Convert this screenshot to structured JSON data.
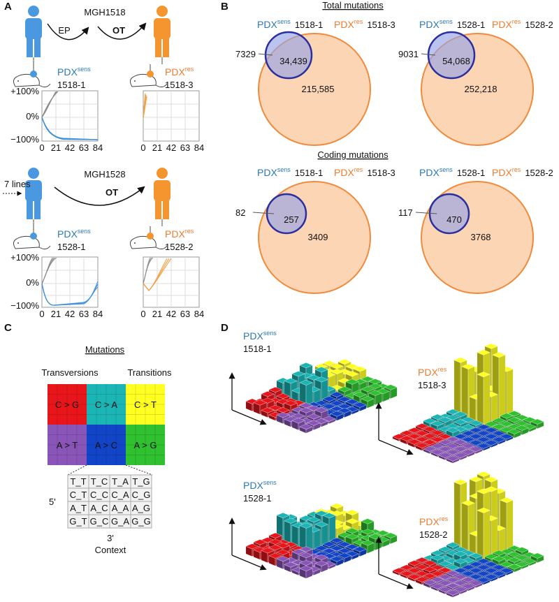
{
  "panel_a": {
    "label": "A",
    "cases": [
      {
        "patient": "MGH1518",
        "steps": [
          "EP",
          "OT"
        ],
        "models": [
          {
            "prefix": "PDX",
            "sup": "sens",
            "id": "1518-1"
          },
          {
            "prefix": "PDX",
            "sup": "res",
            "id": "1518-3"
          }
        ]
      },
      {
        "patient": "MGH1528",
        "lead": "7 lines",
        "steps": [
          "OT"
        ],
        "models": [
          {
            "prefix": "PDX",
            "sup": "sens",
            "id": "1528-1"
          },
          {
            "prefix": "PDX",
            "sup": "res",
            "id": "1528-2"
          }
        ]
      }
    ],
    "y_ticks": [
      "+100%",
      "0%",
      "−100%"
    ],
    "x_ticks": [
      "0",
      "21",
      "42",
      "63",
      "84"
    ]
  },
  "panel_b": {
    "label": "B",
    "sections": [
      {
        "title": "Total mutations",
        "comparisons": [
          {
            "models": [
              {
                "prefix": "PDX",
                "sup": "sens",
                "id": "1518-1"
              },
              {
                "prefix": "PDX",
                "sup": "res",
                "id": "1518-3"
              }
            ],
            "sens_only": "7329",
            "shared": "34,439",
            "res_only": "215,585"
          },
          {
            "models": [
              {
                "prefix": "PDX",
                "sup": "sens",
                "id": "1528-1"
              },
              {
                "prefix": "PDX",
                "sup": "res",
                "id": "1528-2"
              }
            ],
            "sens_only": "9031",
            "shared": "54,068",
            "res_only": "252,218"
          }
        ]
      },
      {
        "title": "Coding mutations",
        "comparisons": [
          {
            "models": [
              {
                "prefix": "PDX",
                "sup": "sens",
                "id": "1518-1"
              },
              {
                "prefix": "PDX",
                "sup": "res",
                "id": "1518-3"
              }
            ],
            "sens_only": "82",
            "shared": "257",
            "res_only": "3409"
          },
          {
            "models": [
              {
                "prefix": "PDX",
                "sup": "sens",
                "id": "1528-1"
              },
              {
                "prefix": "PDX",
                "sup": "res",
                "id": "1528-2"
              }
            ],
            "sens_only": "117",
            "shared": "470",
            "res_only": "3768"
          }
        ]
      }
    ]
  },
  "panel_c": {
    "label": "C",
    "title": "Mutations",
    "groups": [
      "Transversions",
      "Transitions"
    ],
    "classes": [
      [
        "C > G",
        "C > A",
        "C > T"
      ],
      [
        "A > T",
        "A > C",
        "A > G"
      ]
    ],
    "context": [
      [
        "T_T",
        "T_C",
        "T_A",
        "T_G"
      ],
      [
        "C_T",
        "C_C",
        "C_A",
        "C_G"
      ],
      [
        "A_T",
        "A_C",
        "A_A",
        "A_G"
      ],
      [
        "G_T",
        "G_C",
        "G_A",
        "G_G"
      ]
    ],
    "five_prime": "5'",
    "three_prime": "3'",
    "context_label": "Context"
  },
  "panel_d": {
    "label": "D",
    "plots": [
      {
        "prefix": "PDX",
        "sup": "sens",
        "id": "1518-1"
      },
      {
        "prefix": "PDX",
        "sup": "res",
        "id": "1518-3"
      },
      {
        "prefix": "PDX",
        "sup": "sens",
        "id": "1528-1"
      },
      {
        "prefix": "PDX",
        "sup": "res",
        "id": "1528-2"
      }
    ]
  }
}
